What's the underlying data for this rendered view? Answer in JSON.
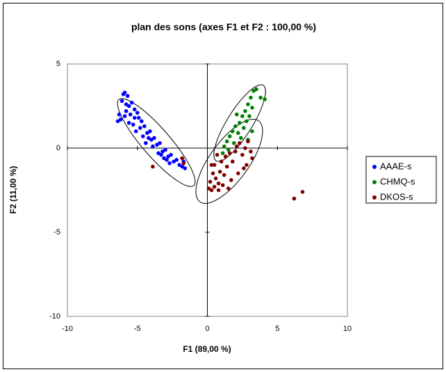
{
  "chart_data": {
    "type": "scatter",
    "title": "plan des sons (axes F1 et F2 : 100,00 %)",
    "xlabel": "F1 (89,00 %)",
    "ylabel": "F2 (11,00 %)",
    "xlim": [
      -10,
      10
    ],
    "xticks": [
      -10,
      -5,
      0,
      5,
      10
    ],
    "ylim": [
      -10,
      5
    ],
    "yticks": [
      -10,
      -5,
      0,
      5
    ],
    "grid": false,
    "legend": "right",
    "series": [
      {
        "name": "AAAE-s",
        "color": "#0000ff",
        "x": [
          -6.0,
          -5.9,
          -5.7,
          -6.1,
          -5.8,
          -6.3,
          -6.4,
          -5.6,
          -5.4,
          -5.9,
          -5.5,
          -5.2,
          -5.0,
          -5.6,
          -5.3,
          -4.9,
          -4.7,
          -5.1,
          -4.8,
          -4.5,
          -4.6,
          -4.3,
          -4.1,
          -4.4,
          -4.0,
          -3.8,
          -3.9,
          -3.6,
          -3.4,
          -3.5,
          -3.2,
          -3.0,
          -3.1,
          -2.8,
          -2.6,
          -2.7,
          -2.4,
          -2.2,
          -2.0,
          -1.8,
          -1.6,
          -1.7,
          -5.8,
          -5.2,
          -4.2,
          -6.2,
          -3.3,
          -2.9
        ],
        "values": [
          3.2,
          3.3,
          3.1,
          2.8,
          2.6,
          2.0,
          1.6,
          2.5,
          2.7,
          1.9,
          2.0,
          2.3,
          2.1,
          1.5,
          1.4,
          1.8,
          1.6,
          1.0,
          1.2,
          1.3,
          0.7,
          0.9,
          1.0,
          0.3,
          0.5,
          0.6,
          0.1,
          0.2,
          0.3,
          -0.3,
          -0.2,
          -0.1,
          -0.6,
          -0.5,
          -0.4,
          -0.9,
          -0.8,
          -0.7,
          -1.0,
          -1.1,
          -1.2,
          -0.8,
          2.2,
          1.8,
          0.6,
          1.7,
          -0.4,
          -0.7
        ]
      },
      {
        "name": "CHMQ-s",
        "color": "#008000",
        "x": [
          3.5,
          3.3,
          3.8,
          4.1,
          3.1,
          2.9,
          2.7,
          3.2,
          2.5,
          2.8,
          2.3,
          2.0,
          2.6,
          1.8,
          2.2,
          1.6,
          2.4,
          1.4,
          1.9,
          1.2,
          2.9,
          3.2,
          1.5,
          1.1,
          2.1,
          3.0
        ],
        "values": [
          3.5,
          3.4,
          3.0,
          2.9,
          3.0,
          2.6,
          2.2,
          2.4,
          1.9,
          1.6,
          1.5,
          1.3,
          1.2,
          1.0,
          0.9,
          0.7,
          0.6,
          0.4,
          0.3,
          0.1,
          0.5,
          1.0,
          -0.1,
          -0.3,
          2.0,
          1.9
        ]
      },
      {
        "name": "DKOS-s",
        "color": "#800000",
        "x": [
          0.1,
          0.3,
          0.5,
          0.2,
          0.6,
          0.4,
          0.8,
          0.9,
          0.5,
          1.0,
          1.2,
          1.4,
          1.3,
          1.6,
          1.8,
          2.0,
          2.1,
          2.3,
          2.5,
          2.7,
          2.9,
          3.1,
          2.6,
          2.2,
          1.7,
          1.5,
          2.8,
          3.2,
          0.8,
          1.1,
          0.3,
          0.7,
          6.2,
          6.8,
          -3.9,
          -1.8,
          -1.7
        ],
        "values": [
          -2.4,
          -2.5,
          -2.3,
          -2.0,
          -1.8,
          -1.5,
          -2.1,
          -1.4,
          -1.0,
          -0.8,
          -1.6,
          -1.1,
          -0.5,
          -0.3,
          -0.8,
          -0.2,
          0.1,
          0.3,
          -0.4,
          0.0,
          0.4,
          -0.2,
          -1.2,
          -1.5,
          -1.9,
          -2.4,
          -1.0,
          -0.6,
          -2.5,
          -2.2,
          -1.0,
          -0.4,
          -3.0,
          -2.6,
          -1.1,
          -0.6,
          -0.9
        ]
      }
    ]
  }
}
